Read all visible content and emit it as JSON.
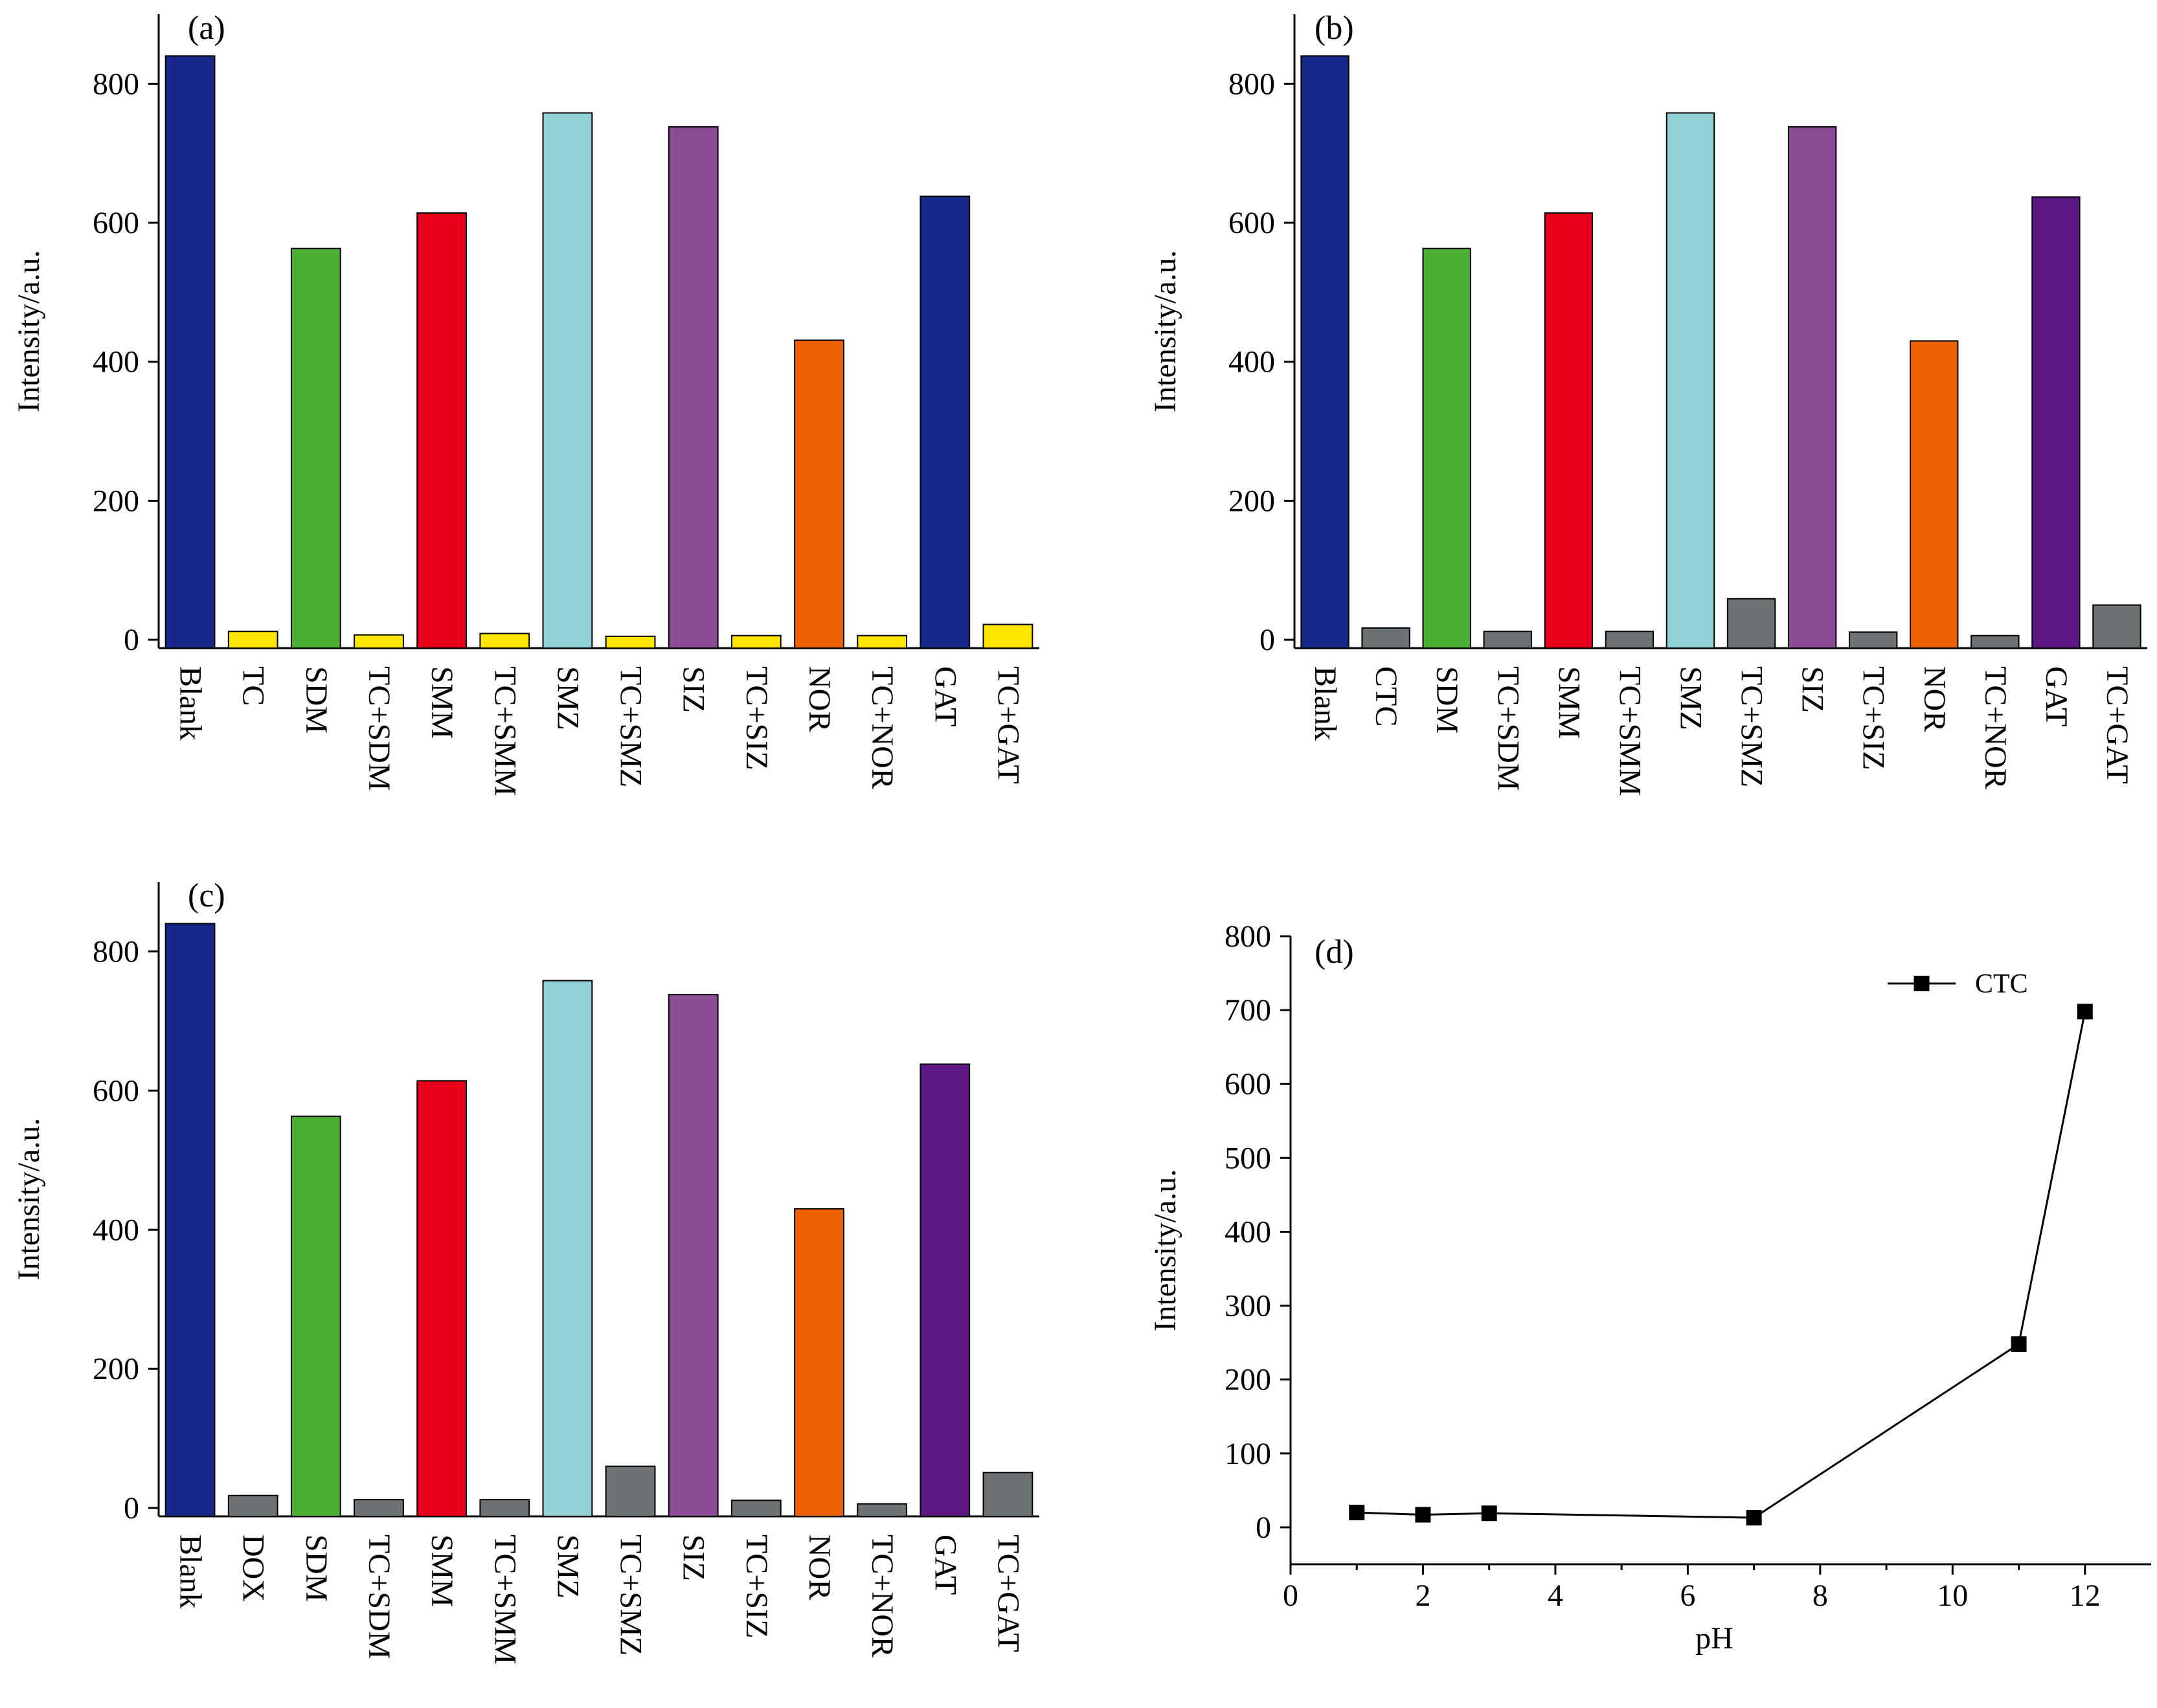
{
  "chart_data": [
    {
      "panel": "(a)",
      "type": "bar",
      "ylabel": "Intensity/a.u.",
      "yticks": [
        0,
        200,
        400,
        600,
        800
      ],
      "ylim": [
        -12,
        900
      ],
      "categories": [
        "Blank",
        "TC",
        "SDM",
        "TC+SDM",
        "SMM",
        "TC+SMM",
        "SMZ",
        "TC+SMZ",
        "SIZ",
        "TC+SIZ",
        "NOR",
        "TC+NOR",
        "GAT",
        "TC+GAT"
      ],
      "values": [
        840,
        12,
        563,
        7,
        614,
        9,
        758,
        5,
        738,
        6,
        431,
        6,
        638,
        22
      ],
      "colors": [
        "#18288a",
        "#ffe600",
        "#4caf35",
        "#ffe600",
        "#e8001a",
        "#ffe600",
        "#93d1d9",
        "#ffe600",
        "#8c4d96",
        "#ffe600",
        "#ee6000",
        "#ffe600",
        "#18288a",
        "#ffe600"
      ]
    },
    {
      "panel": "(b)",
      "type": "bar",
      "ylabel": "Intensity/a.u.",
      "yticks": [
        0,
        200,
        400,
        600,
        800
      ],
      "ylim": [
        -12,
        900
      ],
      "categories": [
        "Blank",
        "CTC",
        "SDM",
        "TC+SDM",
        "SMM",
        "TC+SMM",
        "SMZ",
        "TC+SMZ",
        "SIZ",
        "TC+SIZ",
        "NOR",
        "TC+NOR",
        "GAT",
        "TC+GAT"
      ],
      "values": [
        840,
        17,
        563,
        12,
        614,
        12,
        758,
        59,
        738,
        11,
        430,
        6,
        637,
        50
      ],
      "colors": [
        "#18288a",
        "#6d7275",
        "#4caf35",
        "#6d7275",
        "#e8001a",
        "#6d7275",
        "#93d1d9",
        "#6d7275",
        "#8c4d96",
        "#6d7275",
        "#ee6000",
        "#6d7275",
        "#5c1783",
        "#6d7275"
      ]
    },
    {
      "panel": "(c)",
      "type": "bar",
      "ylabel": "Intensity/a.u.",
      "yticks": [
        0,
        200,
        400,
        600,
        800
      ],
      "ylim": [
        -12,
        900
      ],
      "categories": [
        "Blank",
        "DOX",
        "SDM",
        "TC+SDM",
        "SMM",
        "TC+SMM",
        "SMZ",
        "TC+SMZ",
        "SIZ",
        "TC+SIZ",
        "NOR",
        "TC+NOR",
        "GAT",
        "TC+GAT"
      ],
      "values": [
        840,
        18,
        563,
        12,
        614,
        12,
        758,
        60,
        738,
        11,
        430,
        6,
        638,
        51
      ],
      "colors": [
        "#18288a",
        "#6d7275",
        "#4caf35",
        "#6d7275",
        "#e8001a",
        "#6d7275",
        "#93d1d9",
        "#6d7275",
        "#8c4d96",
        "#6d7275",
        "#ee6000",
        "#6d7275",
        "#5c1783",
        "#6d7275"
      ]
    },
    {
      "panel": "(d)",
      "type": "line",
      "xlabel": "pH",
      "ylabel": "Intensity/a.u.",
      "xlim": [
        0,
        13
      ],
      "ylim": [
        -50,
        800
      ],
      "xticks": [
        0,
        2,
        4,
        6,
        8,
        10,
        12
      ],
      "yticks": [
        0,
        100,
        200,
        300,
        400,
        500,
        600,
        700,
        800
      ],
      "legend_position": "top-right",
      "series": [
        {
          "name": "CTC",
          "x": [
            1,
            2,
            3,
            7,
            11,
            12
          ],
          "y": [
            20,
            17,
            19,
            13,
            248,
            698
          ]
        }
      ]
    }
  ]
}
